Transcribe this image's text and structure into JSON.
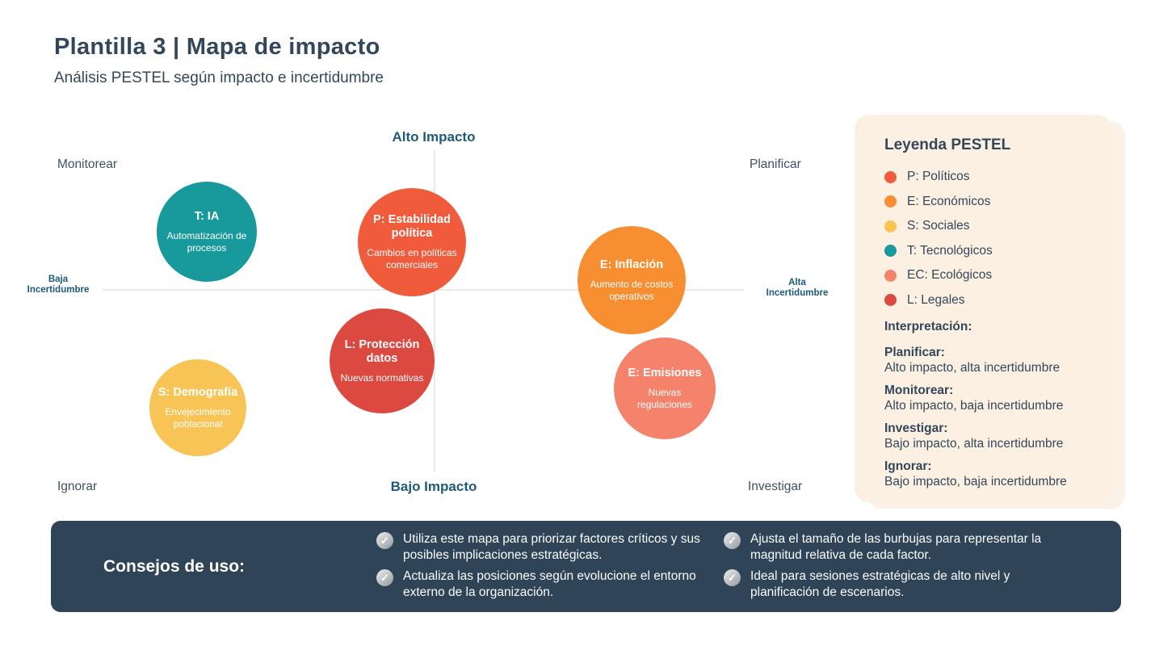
{
  "page": {
    "title": "Plantilla 3 | Mapa de impacto",
    "subtitle": "Análisis PESTEL según impacto e incertidumbre"
  },
  "chart": {
    "type": "quadrant-bubble-map",
    "axis": {
      "top": "Alto Impacto",
      "bottom": "Bajo Impacto",
      "left_line1": "Baja",
      "left_line2": "Incertidumbre",
      "right_line1": "Alta",
      "right_line2": "Incertidumbre"
    },
    "quadrants": {
      "top_left": "Monitorear",
      "top_right": "Planificar",
      "bottom_left": "Ignorar",
      "bottom_right": "Investigar"
    },
    "bubbles": [
      {
        "title": "T: IA",
        "description": "Automatización de procesos",
        "color": "#18999B",
        "impact": "alto",
        "uncertainty": "baja"
      },
      {
        "title": "P: Estabilidad política",
        "description": "Cambios en políticas comerciales",
        "color": "#F05B3B",
        "impact": "alto",
        "uncertainty": "media"
      },
      {
        "title": "E: Inflación",
        "description": "Aumento de costos operativos",
        "color": "#F78E31",
        "impact": "alto",
        "uncertainty": "alta"
      },
      {
        "title": "L: Protección datos",
        "description": "Nuevas normativas",
        "color": "#DC4941",
        "impact": "bajo",
        "uncertainty": "media"
      },
      {
        "title": "S: Demografía",
        "description": "Envejecimiento poblacional",
        "color": "#F8C455",
        "impact": "bajo",
        "uncertainty": "baja"
      },
      {
        "title": "E: Emisiones",
        "description": "Nuevas regulaciones",
        "color": "#F5826B",
        "impact": "bajo",
        "uncertainty": "alta"
      }
    ]
  },
  "legend": {
    "title": "Leyenda PESTEL",
    "items": [
      {
        "label": "P: Políticos",
        "color": "#F05B3B"
      },
      {
        "label": "E: Económicos",
        "color": "#F78E31"
      },
      {
        "label": "S: Sociales",
        "color": "#F8C455"
      },
      {
        "label": "T: Tecnológicos",
        "color": "#18999B"
      },
      {
        "label": "EC: Ecológicos",
        "color": "#F5826B"
      },
      {
        "label": "L: Legales",
        "color": "#DC4941"
      }
    ],
    "interpretation": {
      "title": "Interpretación:",
      "entries": [
        {
          "term": "Planificar:",
          "description": "Alto impacto, alta incertidumbre"
        },
        {
          "term": "Monitorear:",
          "description": "Alto impacto, baja incertidumbre"
        },
        {
          "term": "Investigar:",
          "description": "Bajo impacto, alta incertidumbre"
        },
        {
          "term": "Ignorar:",
          "description": "Bajo impacto, baja incertidumbre"
        }
      ]
    }
  },
  "tips": {
    "title": "Consejos de uso:",
    "check_icon": "✓",
    "items": [
      {
        "text": "Utiliza este mapa para priorizar factores críticos y sus posibles implicaciones estratégicas."
      },
      {
        "text": "Actualiza las posiciones según evolucione el entorno externo de la organización."
      },
      {
        "text": "Ajusta el tamaño de las burbujas para representar la magnitud relativa de cada factor."
      },
      {
        "text": "Ideal para sesiones estratégicas de alto nivel y planificación de escenarios."
      }
    ]
  }
}
